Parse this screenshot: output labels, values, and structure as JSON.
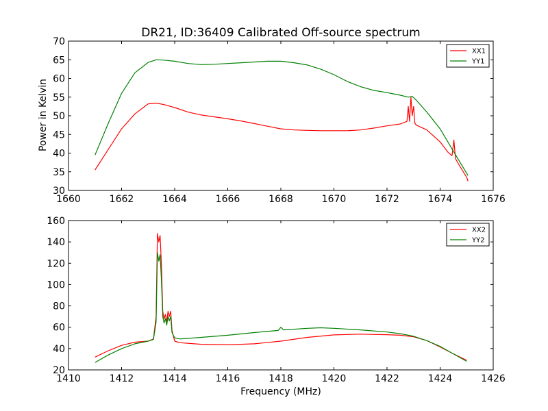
{
  "chart_data": [
    {
      "type": "line",
      "title": "DR21, ID:36409 Calibrated Off-source spectrum",
      "xlabel": "",
      "ylabel": "Power in Kelvin",
      "xlim": [
        1660,
        1676
      ],
      "ylim": [
        30,
        70
      ],
      "xticks": [
        1660,
        1662,
        1664,
        1666,
        1668,
        1670,
        1672,
        1674,
        1676
      ],
      "yticks": [
        30,
        35,
        40,
        45,
        50,
        55,
        60,
        65,
        70
      ],
      "legend_position": "top-right",
      "series": [
        {
          "name": "XX1",
          "color": "#ff0000",
          "x": [
            1661.0,
            1661.5,
            1662.0,
            1662.5,
            1663.0,
            1663.3,
            1663.6,
            1664.0,
            1664.5,
            1665.0,
            1665.5,
            1666.0,
            1666.5,
            1667.0,
            1667.5,
            1668.0,
            1668.5,
            1669.0,
            1669.5,
            1670.0,
            1670.5,
            1671.0,
            1671.5,
            1672.0,
            1672.5,
            1672.75,
            1672.8,
            1672.85,
            1672.9,
            1672.95,
            1673.0,
            1673.05,
            1673.1,
            1673.5,
            1674.0,
            1674.3,
            1674.45,
            1674.52,
            1674.58,
            1674.7,
            1675.0,
            1675.05
          ],
          "values": [
            35.5,
            41.0,
            46.5,
            50.5,
            53.2,
            53.4,
            53.0,
            52.2,
            51.0,
            50.2,
            49.7,
            49.2,
            48.6,
            47.9,
            47.2,
            46.5,
            46.2,
            46.1,
            46.0,
            46.0,
            46.0,
            46.2,
            46.7,
            47.3,
            47.8,
            48.5,
            52.5,
            48.5,
            55.0,
            50.0,
            52.5,
            48.0,
            47.5,
            46.2,
            43.0,
            40.2,
            39.3,
            43.5,
            38.5,
            37.0,
            33.5,
            32.5
          ]
        },
        {
          "name": "YY1",
          "color": "#008000",
          "x": [
            1661.0,
            1661.5,
            1662.0,
            1662.5,
            1663.0,
            1663.3,
            1663.6,
            1664.0,
            1664.5,
            1665.0,
            1665.5,
            1666.0,
            1666.5,
            1667.0,
            1667.5,
            1668.0,
            1668.5,
            1669.0,
            1669.5,
            1670.0,
            1670.5,
            1671.0,
            1671.5,
            1672.0,
            1672.5,
            1672.8,
            1672.95,
            1673.1,
            1673.5,
            1674.0,
            1674.5,
            1675.05
          ],
          "values": [
            39.5,
            48.0,
            56.0,
            61.5,
            64.3,
            65.0,
            64.9,
            64.6,
            64.0,
            63.7,
            63.8,
            64.0,
            64.2,
            64.4,
            64.6,
            64.6,
            64.2,
            63.6,
            62.5,
            61.0,
            59.2,
            57.8,
            56.8,
            56.2,
            55.5,
            55.0,
            55.2,
            54.2,
            51.0,
            46.5,
            40.5,
            34.0
          ]
        }
      ]
    },
    {
      "type": "line",
      "title": "",
      "xlabel": "Frequency (MHz)",
      "ylabel": "",
      "xlim": [
        1410,
        1426
      ],
      "ylim": [
        20,
        160
      ],
      "xticks": [
        1410,
        1412,
        1414,
        1416,
        1418,
        1420,
        1422,
        1424,
        1426
      ],
      "yticks": [
        20,
        40,
        60,
        80,
        100,
        120,
        140,
        160
      ],
      "legend_position": "top-right",
      "series": [
        {
          "name": "XX2",
          "color": "#ff0000",
          "x": [
            1411.0,
            1411.5,
            1412.0,
            1412.5,
            1413.0,
            1413.2,
            1413.3,
            1413.35,
            1413.4,
            1413.45,
            1413.5,
            1413.55,
            1413.6,
            1413.65,
            1413.7,
            1413.75,
            1413.8,
            1413.85,
            1413.9,
            1414.0,
            1414.2,
            1415.0,
            1416.0,
            1417.0,
            1418.0,
            1419.0,
            1420.0,
            1421.0,
            1422.0,
            1422.5,
            1423.0,
            1423.5,
            1424.0,
            1424.5,
            1425.0
          ],
          "values": [
            32.0,
            38.0,
            43.0,
            46.0,
            47.0,
            49.0,
            70.0,
            148.0,
            140.0,
            146.0,
            120.0,
            75.0,
            68.0,
            72.0,
            65.0,
            75.0,
            70.0,
            75.0,
            57.0,
            47.0,
            45.5,
            44.0,
            43.5,
            44.5,
            47.0,
            50.5,
            52.8,
            53.5,
            53.0,
            52.5,
            51.0,
            47.5,
            41.5,
            35.0,
            29.0
          ]
        },
        {
          "name": "YY2",
          "color": "#008000",
          "x": [
            1411.0,
            1411.5,
            1412.0,
            1412.5,
            1413.0,
            1413.2,
            1413.3,
            1413.35,
            1413.4,
            1413.45,
            1413.5,
            1413.55,
            1413.6,
            1413.65,
            1413.7,
            1413.75,
            1413.8,
            1413.85,
            1413.9,
            1414.0,
            1414.2,
            1415.0,
            1416.0,
            1417.0,
            1417.9,
            1418.0,
            1418.1,
            1419.0,
            1419.5,
            1420.0,
            1421.0,
            1422.0,
            1422.5,
            1423.0,
            1423.5,
            1424.0,
            1424.5,
            1425.0
          ],
          "values": [
            27.0,
            34.0,
            40.0,
            44.5,
            47.0,
            48.5,
            65.0,
            130.0,
            122.0,
            128.0,
            105.0,
            70.0,
            64.0,
            68.0,
            62.0,
            70.0,
            66.0,
            70.0,
            55.0,
            50.0,
            49.0,
            50.5,
            52.5,
            55.0,
            57.0,
            60.0,
            57.5,
            59.0,
            59.5,
            59.0,
            57.5,
            55.5,
            54.0,
            51.5,
            47.5,
            42.0,
            35.0,
            28.0
          ]
        }
      ]
    }
  ]
}
